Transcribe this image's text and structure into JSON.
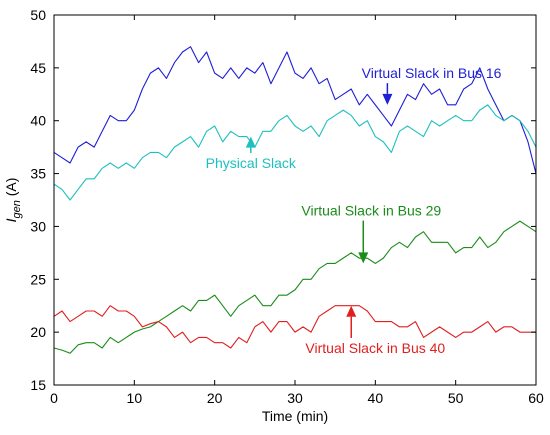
{
  "chart_data": {
    "type": "line",
    "xlabel": "Time (min)",
    "ylabel": "I",
    "ylabel_sub": "gen",
    "ylabel_suffix": " (A)",
    "xlim": [
      0,
      60
    ],
    "ylim": [
      15,
      50
    ],
    "xticks": [
      0,
      10,
      20,
      30,
      40,
      50,
      60
    ],
    "yticks": [
      15,
      20,
      25,
      30,
      35,
      40,
      45,
      50
    ],
    "grid": false,
    "legend": "none",
    "series": [
      {
        "name": "Virtual Slack in Bus 16",
        "color": "#1f1fd6",
        "x": [
          0,
          1,
          2,
          3,
          4,
          5,
          6,
          7,
          8,
          9,
          10,
          11,
          12,
          13,
          14,
          15,
          16,
          17,
          18,
          19,
          20,
          21,
          22,
          23,
          24,
          25,
          26,
          27,
          28,
          29,
          30,
          31,
          32,
          33,
          34,
          35,
          36,
          37,
          38,
          39,
          40,
          41,
          42,
          43,
          44,
          45,
          46,
          47,
          48,
          49,
          50,
          51,
          52,
          53,
          54,
          55,
          56,
          57,
          58,
          59,
          60
        ],
        "values": [
          37,
          36.5,
          36,
          37.5,
          38,
          37.5,
          39,
          40.5,
          40,
          40,
          41,
          43,
          44.5,
          45,
          44,
          45.5,
          46.5,
          47,
          45.5,
          46.5,
          44.5,
          44,
          45,
          44,
          45,
          44.5,
          45.5,
          43.5,
          45,
          46.5,
          44.5,
          44,
          45,
          43.5,
          44,
          42,
          42.5,
          43,
          41.5,
          42.5,
          41.5,
          40.5,
          39.5,
          41,
          42.5,
          42,
          43.5,
          42.5,
          43,
          41.5,
          41.5,
          43,
          43.5,
          45,
          43,
          41.5,
          40,
          40.5,
          40,
          38,
          35
        ]
      },
      {
        "name": "Physical Slack",
        "color": "#1fbfbf",
        "x": [
          0,
          1,
          2,
          3,
          4,
          5,
          6,
          7,
          8,
          9,
          10,
          11,
          12,
          13,
          14,
          15,
          16,
          17,
          18,
          19,
          20,
          21,
          22,
          23,
          24,
          25,
          26,
          27,
          28,
          29,
          30,
          31,
          32,
          33,
          34,
          35,
          36,
          37,
          38,
          39,
          40,
          41,
          42,
          43,
          44,
          45,
          46,
          47,
          48,
          49,
          50,
          51,
          52,
          53,
          54,
          55,
          56,
          57,
          58,
          59,
          60
        ],
        "values": [
          34,
          33.5,
          32.5,
          33.5,
          34.5,
          34.5,
          35.5,
          36,
          35.5,
          36,
          35.5,
          36.5,
          37,
          37,
          36.5,
          37.5,
          38,
          38.5,
          37.5,
          39,
          39.5,
          38,
          39,
          38.5,
          38.5,
          37.5,
          39,
          39,
          40,
          40.5,
          39.5,
          39,
          39.5,
          38.5,
          40,
          40.5,
          41,
          40.5,
          39.5,
          40,
          38.5,
          38,
          37,
          39,
          39.5,
          39,
          38.5,
          40,
          39.5,
          40,
          40.5,
          40,
          40,
          41,
          41.5,
          40.5,
          40,
          40.5,
          40,
          39,
          37.5
        ]
      },
      {
        "name": "Virtual Slack in Bus 29",
        "color": "#1a8c1a",
        "x": [
          0,
          1,
          2,
          3,
          4,
          5,
          6,
          7,
          8,
          9,
          10,
          11,
          12,
          13,
          14,
          15,
          16,
          17,
          18,
          19,
          20,
          21,
          22,
          23,
          24,
          25,
          26,
          27,
          28,
          29,
          30,
          31,
          32,
          33,
          34,
          35,
          36,
          37,
          38,
          39,
          40,
          41,
          42,
          43,
          44,
          45,
          46,
          47,
          48,
          49,
          50,
          51,
          52,
          53,
          54,
          55,
          56,
          57,
          58,
          59,
          60
        ],
        "values": [
          18.5,
          18.3,
          18,
          18.8,
          19,
          19,
          18.5,
          19.5,
          19,
          19.5,
          20,
          20.3,
          20.5,
          21,
          21.5,
          22,
          22.5,
          22,
          23,
          23,
          23.5,
          22.5,
          21.5,
          22.5,
          23,
          23.5,
          22.5,
          22.5,
          23.5,
          23.5,
          24,
          25,
          25,
          26,
          26.5,
          26.5,
          27,
          27.5,
          27,
          27,
          26.5,
          27,
          28,
          28.5,
          28,
          29,
          29.5,
          28.5,
          28.5,
          28.5,
          27.5,
          28,
          28,
          29,
          28,
          28.5,
          29.5,
          30,
          30.5,
          30,
          29.5
        ]
      },
      {
        "name": "Virtual Slack in Bus 40",
        "color": "#e01f1f",
        "x": [
          0,
          1,
          2,
          3,
          4,
          5,
          6,
          7,
          8,
          9,
          10,
          11,
          12,
          13,
          14,
          15,
          16,
          17,
          18,
          19,
          20,
          21,
          22,
          23,
          24,
          25,
          26,
          27,
          28,
          29,
          30,
          31,
          32,
          33,
          34,
          35,
          36,
          37,
          38,
          39,
          40,
          41,
          42,
          43,
          44,
          45,
          46,
          47,
          48,
          49,
          50,
          51,
          52,
          53,
          54,
          55,
          56,
          57,
          58,
          59,
          60
        ],
        "values": [
          21.5,
          22,
          21,
          21.5,
          22,
          22,
          21.5,
          22.5,
          22,
          22,
          21.5,
          20.5,
          20.8,
          21,
          20.5,
          19.5,
          20,
          19,
          19.5,
          19.5,
          19,
          19,
          18.5,
          19.5,
          19,
          20.5,
          21,
          20,
          21,
          21,
          20,
          20.5,
          20,
          21.5,
          22,
          22.5,
          22.5,
          22.5,
          22.5,
          22,
          21,
          21,
          21,
          20.5,
          20.5,
          21,
          19.5,
          20,
          20.5,
          20,
          19.5,
          20,
          20,
          20.5,
          21,
          20,
          20.5,
          20.5,
          20,
          20,
          20
        ]
      }
    ],
    "annotations": [
      {
        "text": "Virtual Slack in Bus 16",
        "color": "#1f1fd6",
        "x": 47,
        "y": 44.5,
        "arrow_to": [
          41.5,
          41.5
        ]
      },
      {
        "text": "Physical Slack",
        "color": "#1fbfbf",
        "x": 24.5,
        "y": 36,
        "arrow_to": [
          24.5,
          38.5
        ]
      },
      {
        "text": "Virtual Slack in Bus 29",
        "color": "#1a8c1a",
        "x": 39.5,
        "y": 31.5,
        "arrow_to": [
          38.5,
          26.5
        ]
      },
      {
        "text": "Virtual Slack in Bus 40",
        "color": "#e01f1f",
        "x": 40,
        "y": 18.5,
        "arrow_to": [
          37,
          22.5
        ]
      }
    ]
  }
}
